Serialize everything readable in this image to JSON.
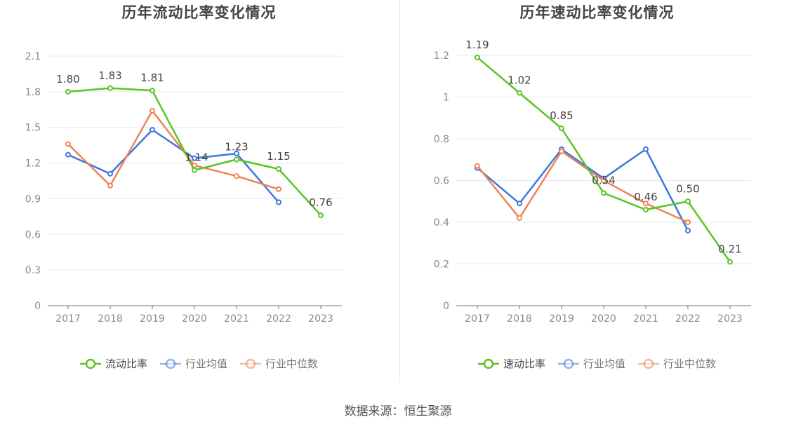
{
  "chart_data": [
    {
      "type": "line",
      "title": "历年流动比率变化情况",
      "categories": [
        "2017",
        "2018",
        "2019",
        "2020",
        "2021",
        "2022",
        "2023"
      ],
      "yticks": [
        "0",
        "0.3",
        "0.6",
        "0.9",
        "1.2",
        "1.5",
        "1.8",
        "2.1"
      ],
      "ylim": [
        0,
        2.1
      ],
      "grid": true,
      "legend_position": "bottom",
      "series": [
        {
          "name": "流动比率",
          "color": "#5bc425",
          "labeled": true,
          "values": [
            1.8,
            1.83,
            1.81,
            1.14,
            1.23,
            1.15,
            0.76
          ],
          "labels": [
            "1.80",
            "1.83",
            "1.81",
            "1.14",
            "1.23",
            "1.15",
            "0.76"
          ]
        },
        {
          "name": "行业均值",
          "color": "#3b78dd",
          "labeled": false,
          "values": [
            1.27,
            1.11,
            1.48,
            1.24,
            1.28,
            0.87,
            null
          ]
        },
        {
          "name": "行业中位数",
          "color": "#f08257",
          "labeled": false,
          "values": [
            1.36,
            1.01,
            1.64,
            1.18,
            1.09,
            0.98,
            null
          ]
        }
      ]
    },
    {
      "type": "line",
      "title": "历年速动比率变化情况",
      "categories": [
        "2017",
        "2018",
        "2019",
        "2020",
        "2021",
        "2022",
        "2023"
      ],
      "yticks": [
        "0",
        "0.2",
        "0.4",
        "0.6",
        "0.8",
        "1",
        "1.2"
      ],
      "ylim": [
        0,
        1.2
      ],
      "grid": true,
      "legend_position": "bottom",
      "series": [
        {
          "name": "速动比率",
          "color": "#5bc425",
          "labeled": true,
          "values": [
            1.19,
            1.02,
            0.85,
            0.54,
            0.46,
            0.5,
            0.21
          ],
          "labels": [
            "1.19",
            "1.02",
            "0.85",
            "0.54",
            "0.46",
            "0.50",
            "0.21"
          ]
        },
        {
          "name": "行业均值",
          "color": "#3b78dd",
          "labeled": false,
          "values": [
            0.66,
            0.49,
            0.75,
            0.61,
            0.75,
            0.36,
            null
          ]
        },
        {
          "name": "行业中位数",
          "color": "#f08257",
          "labeled": false,
          "values": [
            0.67,
            0.42,
            0.74,
            0.6,
            0.49,
            0.4,
            null
          ]
        }
      ]
    }
  ],
  "source": "数据来源：恒生聚源"
}
